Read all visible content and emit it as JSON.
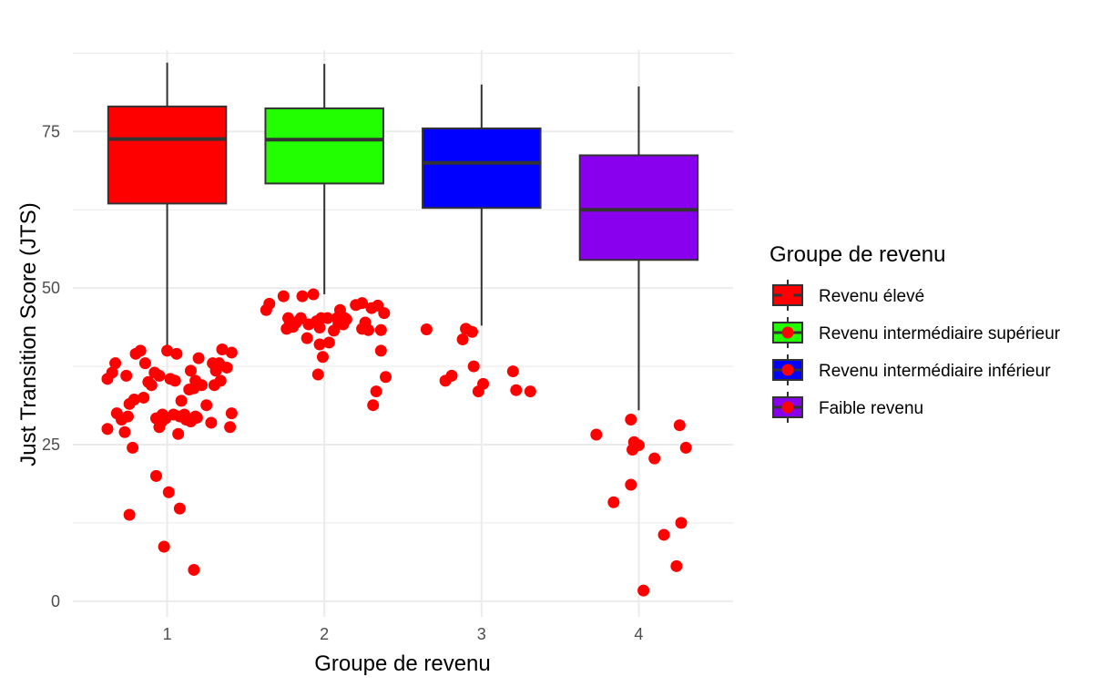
{
  "chart_data": {
    "type": "box",
    "xlabel": "Groupe de revenu",
    "ylabel": "Just Transition Score (JTS)",
    "categories": [
      "1",
      "2",
      "3",
      "4"
    ],
    "y_ticks": [
      0,
      25,
      50,
      75
    ],
    "ylim": [
      -2.5,
      88
    ],
    "grid": true,
    "legend": {
      "title": "Groupe de revenu",
      "placement": "right",
      "entries": [
        "Revenu élevé",
        "Revenu intermédiaire supérieur",
        "Revenu intermédiaire inférieur",
        "Faible revenu"
      ]
    },
    "colors": {
      "fills": [
        "#FF0000",
        "#22FF00",
        "#0000FF",
        "#8800EE"
      ],
      "points": "#FF0000",
      "outline": "#333333",
      "grid": "#EBEBEB"
    },
    "boxes": [
      {
        "category": "1",
        "whisker_low": 40,
        "q1": 63.5,
        "median": 73.8,
        "q3": 79,
        "whisker_high": 86
      },
      {
        "category": "2",
        "whisker_low": 49,
        "q1": 66.7,
        "median": 73.7,
        "q3": 78.7,
        "whisker_high": 85.8
      },
      {
        "category": "3",
        "whisker_low": 44,
        "q1": 62.8,
        "median": 70,
        "q3": 75.5,
        "whisker_high": 82.5
      },
      {
        "category": "4",
        "whisker_low": 30.5,
        "q1": 54.5,
        "median": 62.5,
        "q3": 71.2,
        "whisker_high": 82.2
      }
    ],
    "points": [
      {
        "x": 0.62,
        "y": 35.5
      },
      {
        "x": 0.65,
        "y": 36.5
      },
      {
        "x": 0.67,
        "y": 38
      },
      {
        "x": 0.62,
        "y": 27.5
      },
      {
        "x": 0.68,
        "y": 30
      },
      {
        "x": 0.71,
        "y": 29
      },
      {
        "x": 0.73,
        "y": 27
      },
      {
        "x": 0.75,
        "y": 29.5
      },
      {
        "x": 0.74,
        "y": 36
      },
      {
        "x": 0.76,
        "y": 31.5
      },
      {
        "x": 0.79,
        "y": 32.2
      },
      {
        "x": 0.8,
        "y": 39.5
      },
      {
        "x": 0.83,
        "y": 40
      },
      {
        "x": 0.86,
        "y": 38
      },
      {
        "x": 0.85,
        "y": 32.5
      },
      {
        "x": 0.88,
        "y": 35
      },
      {
        "x": 0.9,
        "y": 34.5
      },
      {
        "x": 0.92,
        "y": 36.5
      },
      {
        "x": 0.95,
        "y": 36
      },
      {
        "x": 0.78,
        "y": 24.5
      },
      {
        "x": 0.76,
        "y": 13.8
      },
      {
        "x": 0.93,
        "y": 29.2
      },
      {
        "x": 0.96,
        "y": 28.5
      },
      {
        "x": 0.97,
        "y": 29.8
      },
      {
        "x": 0.99,
        "y": 29.2
      },
      {
        "x": 0.95,
        "y": 27.8
      },
      {
        "x": 0.93,
        "y": 20
      },
      {
        "x": 0.98,
        "y": 8.7
      },
      {
        "x": 1.0,
        "y": 40
      },
      {
        "x": 1.02,
        "y": 35.5
      },
      {
        "x": 1.05,
        "y": 35.2
      },
      {
        "x": 1.06,
        "y": 39.5
      },
      {
        "x": 1.01,
        "y": 17.4
      },
      {
        "x": 1.04,
        "y": 29.8
      },
      {
        "x": 1.07,
        "y": 26.7
      },
      {
        "x": 1.08,
        "y": 29.5
      },
      {
        "x": 1.09,
        "y": 32
      },
      {
        "x": 1.11,
        "y": 29.8
      },
      {
        "x": 1.12,
        "y": 29
      },
      {
        "x": 1.14,
        "y": 33.8
      },
      {
        "x": 1.15,
        "y": 36.8
      },
      {
        "x": 1.15,
        "y": 28.7
      },
      {
        "x": 1.18,
        "y": 29.5
      },
      {
        "x": 1.17,
        "y": 34
      },
      {
        "x": 1.18,
        "y": 35.2
      },
      {
        "x": 1.2,
        "y": 38.8
      },
      {
        "x": 1.19,
        "y": 29.3
      },
      {
        "x": 1.22,
        "y": 34.5
      },
      {
        "x": 1.25,
        "y": 31.3
      },
      {
        "x": 1.28,
        "y": 28.5
      },
      {
        "x": 1.29,
        "y": 38
      },
      {
        "x": 1.3,
        "y": 34.5
      },
      {
        "x": 1.31,
        "y": 36.8
      },
      {
        "x": 1.33,
        "y": 38
      },
      {
        "x": 1.34,
        "y": 35.2
      },
      {
        "x": 1.35,
        "y": 40.2
      },
      {
        "x": 1.38,
        "y": 37.3
      },
      {
        "x": 1.41,
        "y": 39.7
      },
      {
        "x": 1.41,
        "y": 30
      },
      {
        "x": 1.4,
        "y": 27.8
      },
      {
        "x": 1.08,
        "y": 14.8
      },
      {
        "x": 1.17,
        "y": 5
      },
      {
        "x": 1.63,
        "y": 46.5
      },
      {
        "x": 1.65,
        "y": 47.5
      },
      {
        "x": 1.74,
        "y": 48.7
      },
      {
        "x": 1.76,
        "y": 43.5
      },
      {
        "x": 1.77,
        "y": 45.2
      },
      {
        "x": 1.78,
        "y": 44.3
      },
      {
        "x": 1.8,
        "y": 43.8
      },
      {
        "x": 1.82,
        "y": 44.5
      },
      {
        "x": 1.85,
        "y": 45.2
      },
      {
        "x": 1.86,
        "y": 48.7
      },
      {
        "x": 1.9,
        "y": 44.2
      },
      {
        "x": 1.89,
        "y": 42
      },
      {
        "x": 1.93,
        "y": 49
      },
      {
        "x": 1.95,
        "y": 44.7
      },
      {
        "x": 1.97,
        "y": 43.7
      },
      {
        "x": 1.97,
        "y": 41
      },
      {
        "x": 1.99,
        "y": 39
      },
      {
        "x": 1.98,
        "y": 45.2
      },
      {
        "x": 2.02,
        "y": 45.2
      },
      {
        "x": 2.03,
        "y": 41.3
      },
      {
        "x": 2.06,
        "y": 43.2
      },
      {
        "x": 2.08,
        "y": 45.2
      },
      {
        "x": 2.09,
        "y": 44.3
      },
      {
        "x": 2.1,
        "y": 46.5
      },
      {
        "x": 2.12,
        "y": 44.2
      },
      {
        "x": 2.13,
        "y": 45.2
      },
      {
        "x": 2.14,
        "y": 45
      },
      {
        "x": 1.96,
        "y": 36.2
      },
      {
        "x": 2.2,
        "y": 47.3
      },
      {
        "x": 2.24,
        "y": 47.6
      },
      {
        "x": 2.24,
        "y": 43.5
      },
      {
        "x": 2.26,
        "y": 44.5
      },
      {
        "x": 2.28,
        "y": 43.3
      },
      {
        "x": 2.3,
        "y": 46.8
      },
      {
        "x": 2.34,
        "y": 47.2
      },
      {
        "x": 2.36,
        "y": 43.3
      },
      {
        "x": 2.38,
        "y": 46
      },
      {
        "x": 2.36,
        "y": 40
      },
      {
        "x": 2.39,
        "y": 35.8
      },
      {
        "x": 2.33,
        "y": 33.5
      },
      {
        "x": 2.31,
        "y": 31.3
      },
      {
        "x": 2.65,
        "y": 43.4
      },
      {
        "x": 2.77,
        "y": 35.2
      },
      {
        "x": 2.81,
        "y": 36
      },
      {
        "x": 2.88,
        "y": 41.8
      },
      {
        "x": 2.9,
        "y": 43.5
      },
      {
        "x": 2.94,
        "y": 43
      },
      {
        "x": 2.95,
        "y": 37.5
      },
      {
        "x": 2.98,
        "y": 33.5
      },
      {
        "x": 3.01,
        "y": 34.7
      },
      {
        "x": 3.2,
        "y": 36.7
      },
      {
        "x": 3.22,
        "y": 33.7
      },
      {
        "x": 3.31,
        "y": 33.5
      },
      {
        "x": 3.73,
        "y": 26.6
      },
      {
        "x": 3.84,
        "y": 15.8
      },
      {
        "x": 3.95,
        "y": 29
      },
      {
        "x": 3.95,
        "y": 18.6
      },
      {
        "x": 3.97,
        "y": 25.4
      },
      {
        "x": 3.96,
        "y": 24.2
      },
      {
        "x": 4.0,
        "y": 24.9
      },
      {
        "x": 4.03,
        "y": 1.7
      },
      {
        "x": 4.1,
        "y": 22.8
      },
      {
        "x": 4.16,
        "y": 10.6
      },
      {
        "x": 4.24,
        "y": 5.6
      },
      {
        "x": 4.26,
        "y": 28.1
      },
      {
        "x": 4.27,
        "y": 12.5
      },
      {
        "x": 4.3,
        "y": 24.5
      }
    ]
  }
}
